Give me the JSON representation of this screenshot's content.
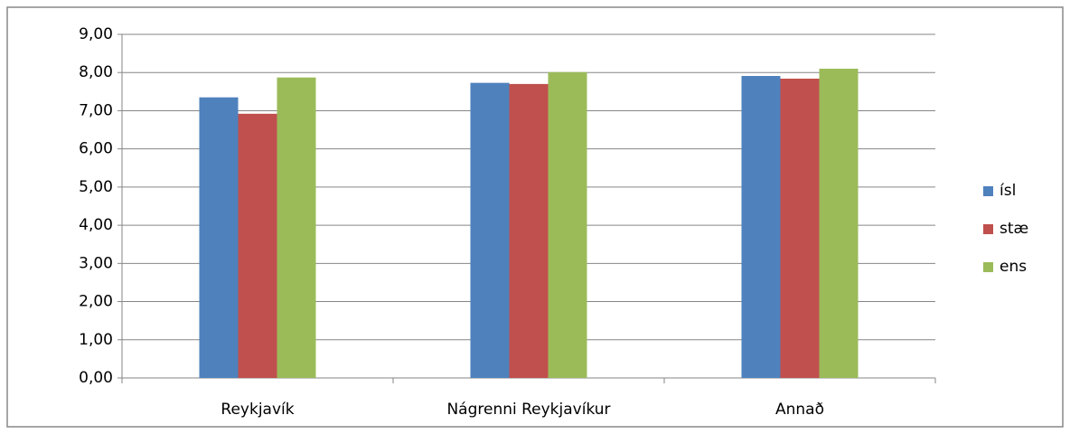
{
  "chart_data": {
    "type": "bar",
    "categories": [
      "Reykjavík",
      "Nágrenni Reykjavíkur",
      "Annað"
    ],
    "series": [
      {
        "name": "ísl",
        "color": "#4f81bd",
        "values": [
          7.35,
          7.73,
          7.91
        ]
      },
      {
        "name": "stæ",
        "color": "#c0504d",
        "values": [
          6.92,
          7.7,
          7.84
        ]
      },
      {
        "name": "ens",
        "color": "#9bbb59",
        "values": [
          7.87,
          8.01,
          8.1
        ]
      }
    ],
    "ylim": [
      0,
      9
    ],
    "yticks": [
      {
        "value": 0,
        "label": "0,00"
      },
      {
        "value": 1,
        "label": "1,00"
      },
      {
        "value": 2,
        "label": "2,00"
      },
      {
        "value": 3,
        "label": "3,00"
      },
      {
        "value": 4,
        "label": "4,00"
      },
      {
        "value": 5,
        "label": "5,00"
      },
      {
        "value": 6,
        "label": "6,00"
      },
      {
        "value": 7,
        "label": "7,00"
      },
      {
        "value": 8,
        "label": "8,00"
      },
      {
        "value": 9,
        "label": "9,00"
      }
    ],
    "grid": true,
    "legend": "right"
  }
}
